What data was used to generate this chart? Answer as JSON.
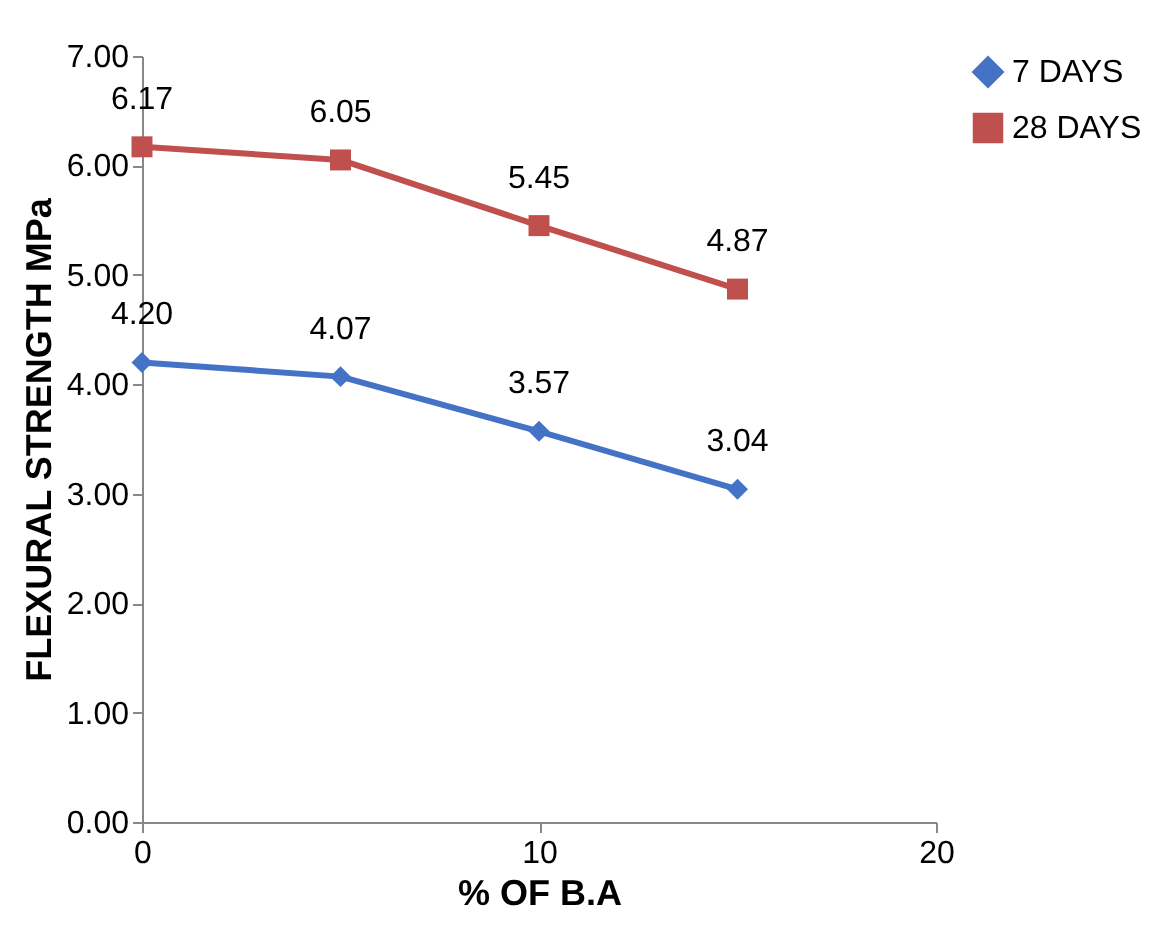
{
  "chart_data": {
    "type": "line",
    "xlabel": "% OF B.A",
    "ylabel": "FLEXURAL STRENGTH MPa",
    "x": [
      0,
      5,
      10,
      15
    ],
    "series": [
      {
        "name": "7 DAYS",
        "color": "#4472c4",
        "marker": "diamond",
        "values": [
          4.2,
          4.07,
          3.57,
          3.04
        ],
        "value_labels": [
          "4.20",
          "4.07",
          "3.57",
          "3.04"
        ]
      },
      {
        "name": "28 DAYS",
        "color": "#c0504d",
        "marker": "square",
        "values": [
          6.17,
          6.05,
          5.45,
          4.87
        ],
        "value_labels": [
          "6.17",
          "6.05",
          "5.45",
          "4.87"
        ]
      }
    ],
    "xlim": [
      0,
      20
    ],
    "xticks": [
      0,
      10,
      20
    ],
    "ylim": [
      0,
      7
    ],
    "yticks": [
      {
        "value": 0,
        "label": "0.00"
      },
      {
        "value": 1,
        "label": "1.00"
      },
      {
        "value": 2,
        "label": "2.00"
      },
      {
        "value": 3,
        "label": "3.00"
      },
      {
        "value": 4,
        "label": "4.00"
      },
      {
        "value": 5,
        "label": "5.00"
      },
      {
        "value": 6,
        "label": "6.00"
      },
      {
        "value": 7,
        "label": "7.00"
      }
    ],
    "grid": false,
    "legend": "right",
    "line_style": "solid"
  }
}
